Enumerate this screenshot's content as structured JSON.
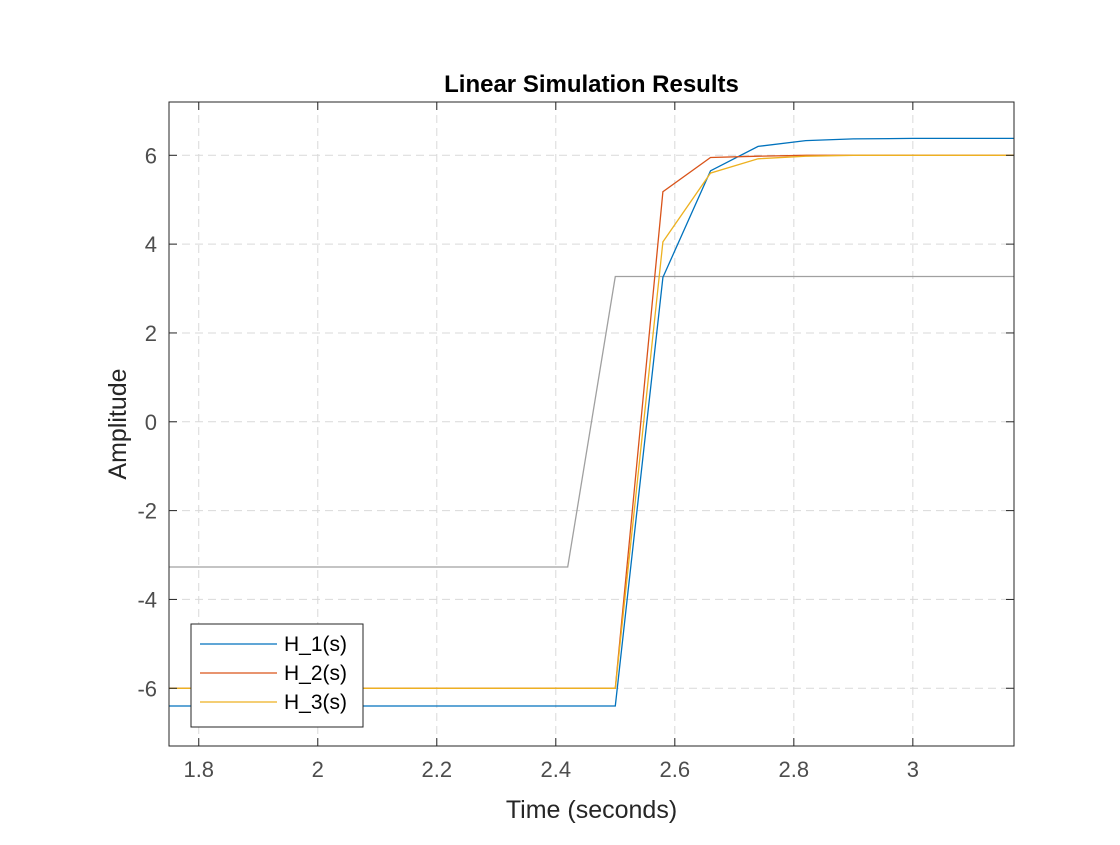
{
  "chart_data": {
    "type": "line",
    "title": "Linear Simulation Results",
    "xlabel": "Time (seconds)",
    "ylabel": "Amplitude",
    "xlim": [
      1.75,
      3.17
    ],
    "ylim": [
      -7.3,
      7.2
    ],
    "xticks": [
      1.8,
      2,
      2.2,
      2.4,
      2.6,
      2.8,
      3
    ],
    "xtick_labels": [
      "1.8",
      "2",
      "2.2",
      "2.4",
      "2.6",
      "2.8",
      "3"
    ],
    "yticks": [
      -6,
      -4,
      -2,
      0,
      2,
      4,
      6
    ],
    "ytick_labels": [
      "-6",
      "-4",
      "-2",
      "0",
      "2",
      "4",
      "6"
    ],
    "grid": true,
    "legend_position": "bottom-left",
    "input": {
      "color": "#a0a0a0",
      "x": [
        1.75,
        2.42,
        2.5,
        3.17
      ],
      "y": [
        -3.27,
        -3.27,
        3.27,
        3.27
      ]
    },
    "series": [
      {
        "name": "H_1(s)",
        "color": "#0072bd",
        "x": [
          1.75,
          2.5,
          2.58,
          2.66,
          2.74,
          2.82,
          2.9,
          3.0,
          3.17
        ],
        "y": [
          -6.4,
          -6.4,
          3.25,
          5.65,
          6.2,
          6.33,
          6.37,
          6.38,
          6.38
        ]
      },
      {
        "name": "H_2(s)",
        "color": "#d95319",
        "x": [
          1.75,
          2.5,
          2.58,
          2.66,
          2.74,
          2.82,
          3.17
        ],
        "y": [
          -6.0,
          -6.0,
          5.18,
          5.95,
          5.98,
          6.0,
          6.0
        ]
      },
      {
        "name": "H_3(s)",
        "color": "#edb120",
        "x": [
          1.75,
          2.5,
          2.58,
          2.66,
          2.74,
          2.82,
          2.9,
          3.17
        ],
        "y": [
          -6.0,
          -6.0,
          4.05,
          5.6,
          5.92,
          5.98,
          6.0,
          6.0
        ]
      }
    ]
  }
}
